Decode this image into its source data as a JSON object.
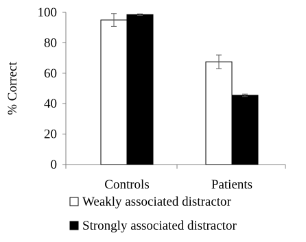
{
  "chart_data": {
    "type": "bar",
    "ylabel": "% Correct",
    "xlabel": "",
    "ylim": [
      0,
      100
    ],
    "yticks": [
      0,
      20,
      40,
      60,
      80,
      100
    ],
    "categories": [
      "Controls",
      "Patients"
    ],
    "series": [
      {
        "name": "Weakly associated distractor",
        "values": [
          95,
          67.5
        ],
        "errors": [
          4.2,
          4.5
        ],
        "color": "#ffffff"
      },
      {
        "name": "Strongly associated distractor",
        "values": [
          98.5,
          45.5
        ],
        "errors": [
          0.5,
          0.8
        ],
        "color": "#000000"
      }
    ],
    "grid": false,
    "legend_position": "bottom"
  }
}
